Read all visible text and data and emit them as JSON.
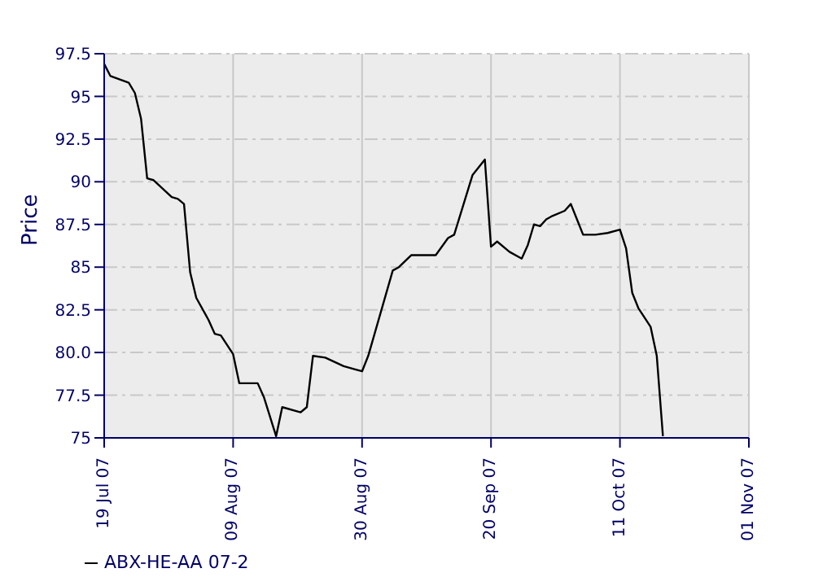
{
  "chart_data": {
    "type": "line",
    "ylabel": "Price",
    "x": [
      "2007-07-19",
      "2007-07-20",
      "2007-07-23",
      "2007-07-24",
      "2007-07-25",
      "2007-07-26",
      "2007-07-27",
      "2007-07-30",
      "2007-07-31",
      "2007-08-01",
      "2007-08-02",
      "2007-08-03",
      "2007-08-05",
      "2007-08-06",
      "2007-08-07",
      "2007-08-09",
      "2007-08-10",
      "2007-08-13",
      "2007-08-14",
      "2007-08-16",
      "2007-08-17",
      "2007-08-20",
      "2007-08-21",
      "2007-08-22",
      "2007-08-24",
      "2007-08-27",
      "2007-08-29",
      "2007-08-30",
      "2007-08-31",
      "2007-09-04",
      "2007-09-05",
      "2007-09-07",
      "2007-09-11",
      "2007-09-13",
      "2007-09-14",
      "2007-09-17",
      "2007-09-19",
      "2007-09-20",
      "2007-09-21",
      "2007-09-23",
      "2007-09-25",
      "2007-09-26",
      "2007-09-27",
      "2007-09-28",
      "2007-09-29",
      "2007-09-30",
      "2007-10-02",
      "2007-10-03",
      "2007-10-04",
      "2007-10-05",
      "2007-10-07",
      "2007-10-09",
      "2007-10-11",
      "2007-10-12",
      "2007-10-13",
      "2007-10-14",
      "2007-10-16",
      "2007-10-17",
      "2007-10-18"
    ],
    "series": [
      {
        "name": "ABX-HE-AA 07-2",
        "color": "#000000",
        "values": [
          96.9,
          96.2,
          95.8,
          95.2,
          93.7,
          90.2,
          90.1,
          89.1,
          89.0,
          88.7,
          84.7,
          83.2,
          81.9,
          81.1,
          81.0,
          79.9,
          78.2,
          78.2,
          77.4,
          75.1,
          76.8,
          76.5,
          76.8,
          79.8,
          79.7,
          79.2,
          79.0,
          78.9,
          79.8,
          84.8,
          85.0,
          85.7,
          85.7,
          86.7,
          86.9,
          90.4,
          91.3,
          86.2,
          86.5,
          85.9,
          85.5,
          86.3,
          87.5,
          87.4,
          87.8,
          88.0,
          88.3,
          88.7,
          87.8,
          86.9,
          86.9,
          87.0,
          87.2,
          86.1,
          83.5,
          82.6,
          81.5,
          79.8,
          75.1
        ]
      }
    ],
    "xlim": [
      "2007-07-19",
      "2007-11-01"
    ],
    "xticks": [
      {
        "value": "2007-07-19",
        "label": "19 Jul 07"
      },
      {
        "value": "2007-08-09",
        "label": "09 Aug 07"
      },
      {
        "value": "2007-08-30",
        "label": "30 Aug 07"
      },
      {
        "value": "2007-09-20",
        "label": "20 Sep 07"
      },
      {
        "value": "2007-10-11",
        "label": "11 Oct 07"
      },
      {
        "value": "2007-11-01",
        "label": "01 Nov 07"
      }
    ],
    "ylim": [
      75,
      97.5
    ],
    "yticks": [
      75,
      77.5,
      {
        "value": 80,
        "label": "80.0"
      },
      82.5,
      85,
      87.5,
      90,
      92.5,
      95,
      97.5
    ],
    "grid": true,
    "legend": "bottom left",
    "marker": "none",
    "line_style": "solid"
  }
}
